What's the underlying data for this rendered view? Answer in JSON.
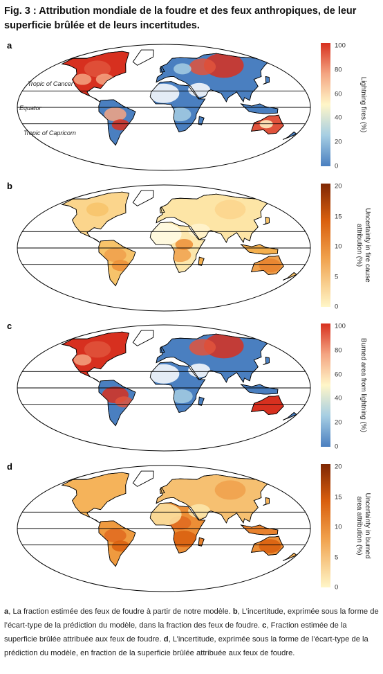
{
  "figure": {
    "title": "Fig. 3 : Attribution mondiale de la foudre et des feux anthropiques, de leur superficie brûlée et de leurs incertitudes."
  },
  "panels": [
    {
      "letter": "a",
      "colorbar_label": "Lightning fires (%)",
      "ticks": [
        "100",
        "80",
        "60",
        "40",
        "20",
        "0"
      ],
      "palette": "diverging",
      "map_labels": {
        "tropic_cancer": "Tropic of Cancer",
        "equator": "Equator",
        "tropic_capricorn": "Tropic of Capricorn"
      }
    },
    {
      "letter": "b",
      "colorbar_label": "Uncertainty in fire cause\nattribution (%)",
      "ticks": [
        "20",
        "15",
        "10",
        "5",
        "0"
      ],
      "palette": "sequential"
    },
    {
      "letter": "c",
      "colorbar_label": "Burned area from lightning (%)",
      "ticks": [
        "100",
        "80",
        "60",
        "40",
        "20",
        "0"
      ],
      "palette": "diverging"
    },
    {
      "letter": "d",
      "colorbar_label": "Uncertainty in burned\narea attribution (%)",
      "ticks": [
        "20",
        "15",
        "10",
        "5",
        "0"
      ],
      "palette": "sequential"
    }
  ],
  "caption": [
    {
      "b": "a"
    },
    {
      "t": ", La fraction estimée des feux de foudre à partir de notre modèle. "
    },
    {
      "b": "b"
    },
    {
      "t": ", L’incertitude, exprimée sous la forme de l’écart-type de la prédiction du modèle, dans la fraction des feux de foudre. "
    },
    {
      "b": "c"
    },
    {
      "t": ", Fraction estimée de la superficie brûlée attribuée aux feux de foudre. "
    },
    {
      "b": "d"
    },
    {
      "t": ", L’incertitude, exprimée sous la forme de l’écart-type de la prédiction du modèle, en fraction de la superficie brûlée attribuée aux feux de foudre."
    }
  ],
  "colors": {
    "div_high": "#d7301f",
    "div_mid": "#fff6c8",
    "div_low": "#4a7fc0",
    "seq_high": "#7f2704",
    "seq_mid": "#f0a04b",
    "seq_low": "#fff6c8"
  }
}
